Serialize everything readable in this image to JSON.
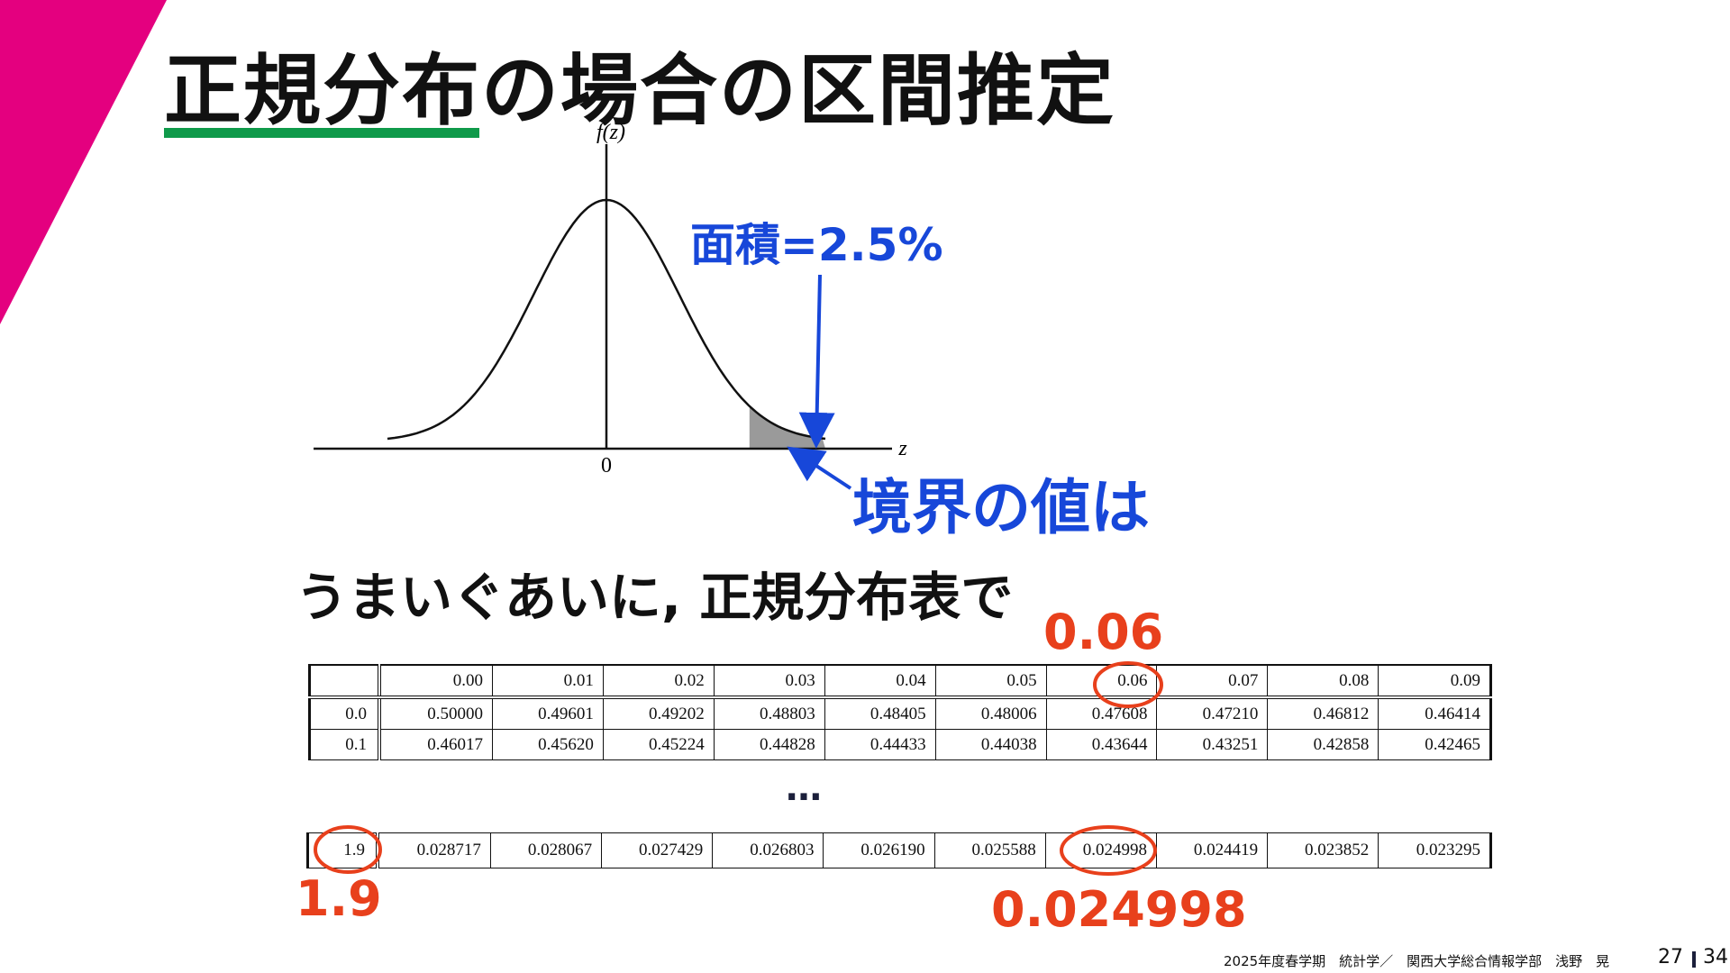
{
  "slide": {
    "title": "正規分布の場合の区間推定",
    "accent_color": "#e4007f",
    "underline_color": "#0f9a4a"
  },
  "figure": {
    "y_axis_label": "f(z)",
    "x_axis_label": "z",
    "origin_label": "0",
    "area_label": "面積=2.5%",
    "boundary_label": "境界の値は"
  },
  "subtitle": "うまいぐあいに, 正規分布表で",
  "table_top": {
    "header": [
      "",
      "0.00",
      "0.01",
      "0.02",
      "0.03",
      "0.04",
      "0.05",
      "0.06",
      "0.07",
      "0.08",
      "0.09"
    ],
    "rows": [
      [
        "0.0",
        "0.50000",
        "0.49601",
        "0.49202",
        "0.48803",
        "0.48405",
        "0.48006",
        "0.47608",
        "0.47210",
        "0.46812",
        "0.46414"
      ],
      [
        "0.1",
        "0.46017",
        "0.45620",
        "0.45224",
        "0.44828",
        "0.44433",
        "0.44038",
        "0.43644",
        "0.43251",
        "0.42858",
        "0.42465"
      ]
    ]
  },
  "ellipsis": "…",
  "table_bottom": {
    "rows": [
      [
        "1.9",
        "0.028717",
        "0.028067",
        "0.027429",
        "0.026803",
        "0.026190",
        "0.025588",
        "0.024998",
        "0.024419",
        "0.023852",
        "0.023295"
      ]
    ]
  },
  "callouts": {
    "column": "0.06",
    "row": "1.9",
    "value": "0.024998",
    "color": "#e8401c"
  },
  "footer": {
    "text": "2025年度春学期　統計学／　関西大学総合情報学部　浅野　晃",
    "page": "27",
    "total": "34"
  }
}
